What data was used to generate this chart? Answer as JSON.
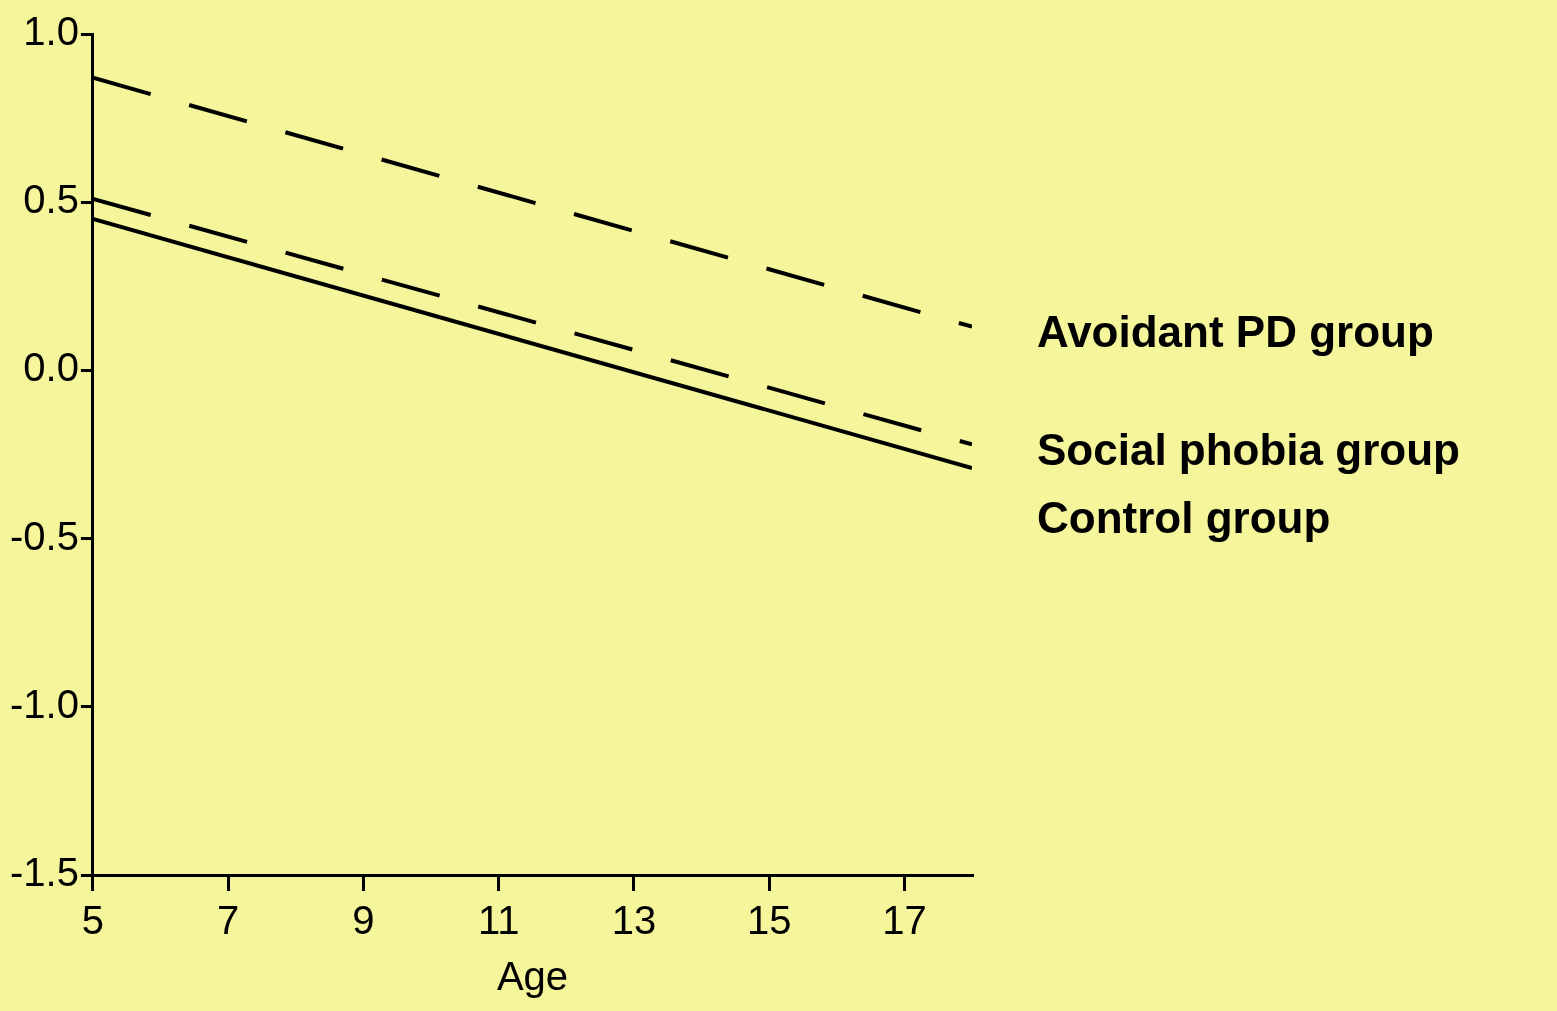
{
  "chart_data": {
    "type": "line",
    "xlabel": "Age",
    "x": [
      5,
      18
    ],
    "series": [
      {
        "name": "Avoidant PD group",
        "color": "#000000",
        "values": [
          0.87,
          0.13
        ],
        "line_style": "dashed"
      },
      {
        "name": "Social phobia group",
        "color": "#000000",
        "values": [
          0.51,
          -0.22
        ],
        "line_style": "dashed"
      },
      {
        "name": "Control group",
        "color": "#000000",
        "values": [
          0.45,
          -0.29
        ],
        "line_style": "solid"
      }
    ],
    "xlim": [
      5,
      18
    ],
    "xticks": [
      5,
      7,
      9,
      11,
      13,
      15,
      17
    ],
    "ylim": [
      -1.5,
      1.0
    ],
    "yticks": [
      {
        "value": -1.5,
        "label": "-1.5"
      },
      {
        "value": -1.0,
        "label": "-1.0"
      },
      -0.5,
      {
        "value": 0.0,
        "label": "0.0"
      },
      0.5,
      {
        "value": 1.0,
        "label": "1.0"
      }
    ],
    "grid": false,
    "legend": false,
    "marker": "none"
  }
}
